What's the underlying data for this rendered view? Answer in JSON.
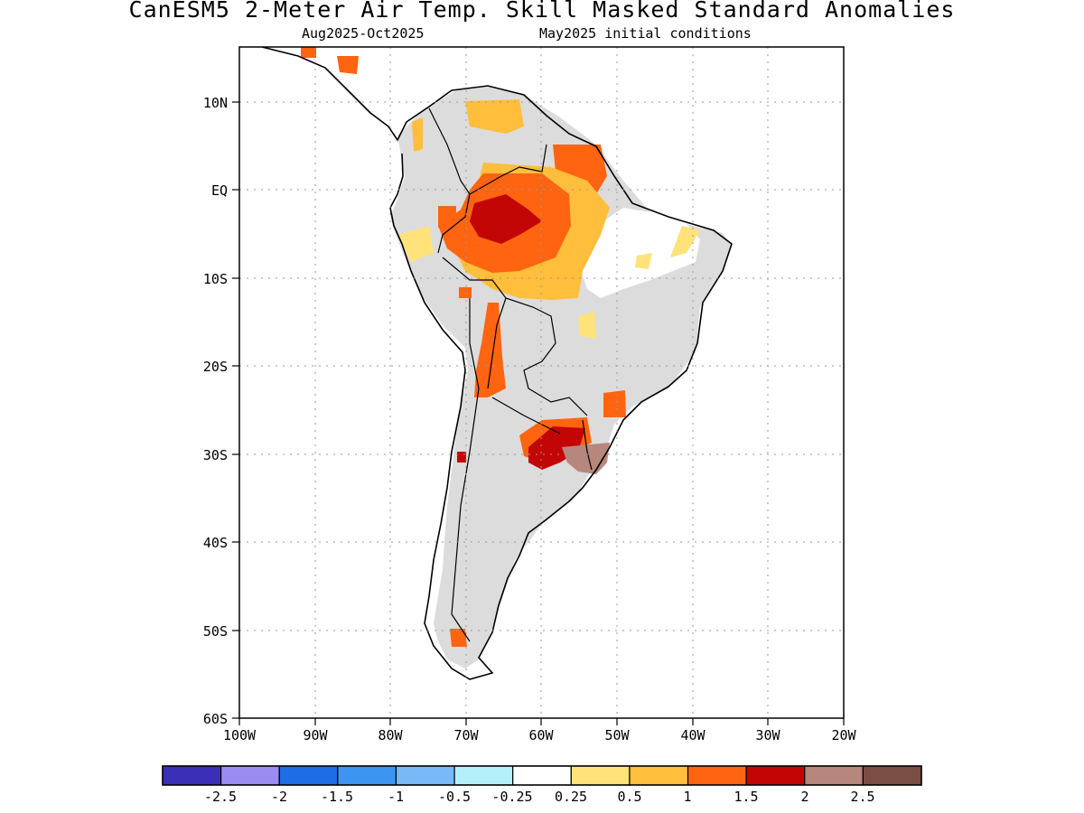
{
  "title": "CanESM5 2-Meter Air Temp. Skill Masked Standard Anomalies",
  "subtitle_left": "Aug2025-Oct2025",
  "subtitle_right": "May2025 initial conditions",
  "map": {
    "lon_range": [
      -100,
      -20
    ],
    "lat_range": [
      -60,
      16
    ],
    "lat_ticks": [
      "10N",
      "EQ",
      "10S",
      "20S",
      "30S",
      "40S",
      "50S",
      "60S"
    ],
    "lon_ticks": [
      "100W",
      "90W",
      "80W",
      "70W",
      "60W",
      "50W",
      "40W",
      "30W",
      "20W"
    ],
    "grid": "dotted",
    "skill_mask_color": "#dcdcdc"
  },
  "colorbar": {
    "colors": [
      "#3b2fb8",
      "#9b8cf2",
      "#1f6de6",
      "#3d95f2",
      "#78b9f7",
      "#b3f0fa",
      "#ffffff",
      "#ffe37a",
      "#ffbe3b",
      "#ff6410",
      "#c20606",
      "#b6877c",
      "#7a4e42"
    ],
    "labels": [
      "-2.5",
      "-2",
      "-1.5",
      "-1",
      "-0.5",
      "-0.25",
      "0.25",
      "0.5",
      "1",
      "1.5",
      "2",
      "2.5"
    ]
  },
  "anomaly_regions": [
    {
      "name": "northern-venezuela",
      "value": 1
    },
    {
      "name": "guianas",
      "value": 1.5
    },
    {
      "name": "western-amazon-core",
      "value": 2
    },
    {
      "name": "amazon-basin",
      "value": 1.5
    },
    {
      "name": "central-brazil",
      "value": 1
    },
    {
      "name": "bolivia-chile-strip",
      "value": 1.5
    },
    {
      "name": "northeast-brazil-coast",
      "value": 0.5
    },
    {
      "name": "southern-brazil",
      "value": 1.5
    },
    {
      "name": "parana-argentina",
      "value": 2
    },
    {
      "name": "uruguay-rio-grande",
      "value": 2.5
    },
    {
      "name": "patagonia-tip",
      "value": 1.5
    }
  ]
}
